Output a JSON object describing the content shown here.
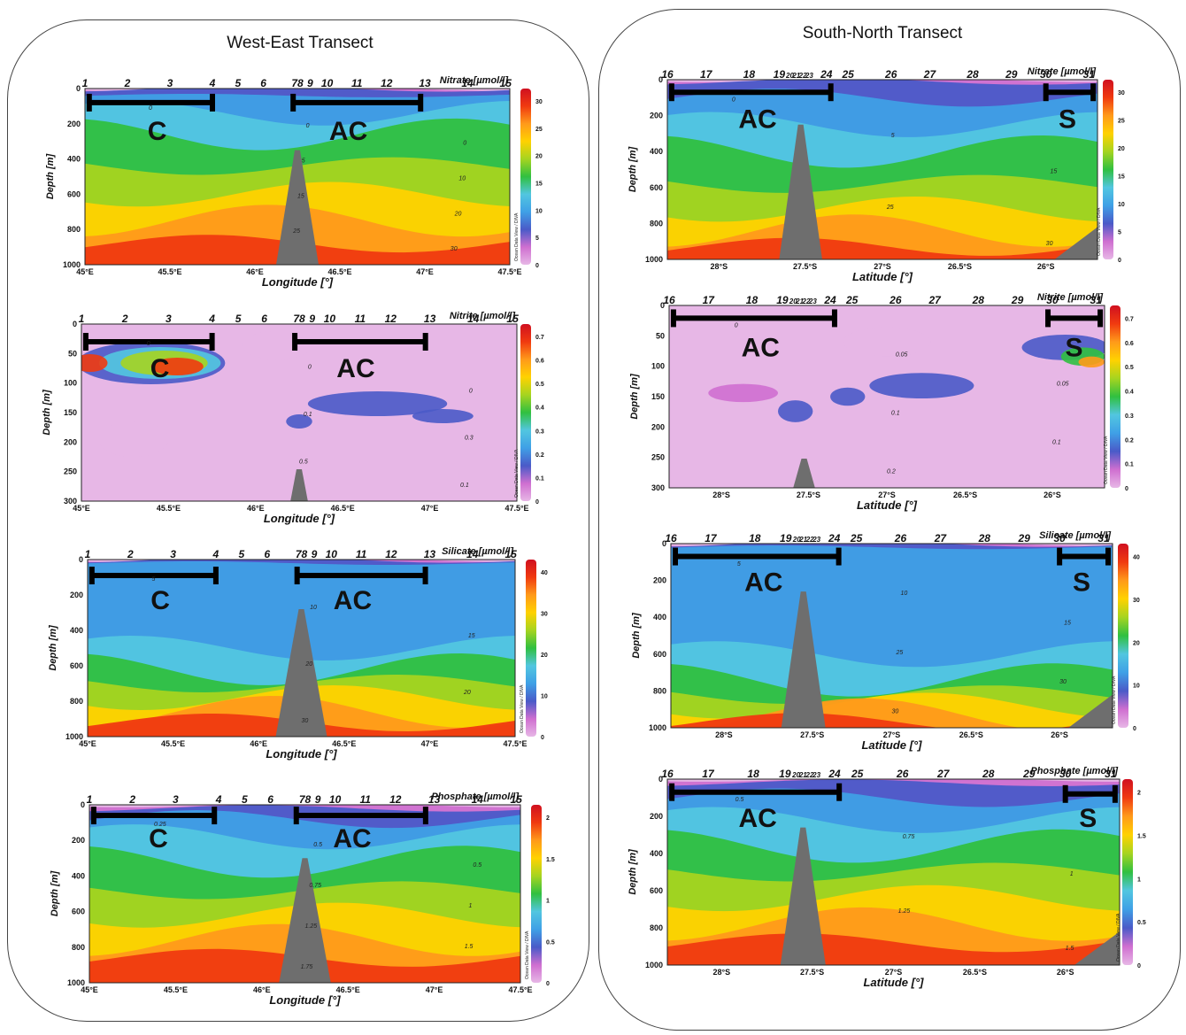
{
  "titles": {
    "west_east": "West-East Transect",
    "south_north": "South-North Transect"
  },
  "colorbar_credit": "Ocean Data View / DIVA",
  "colors": {
    "scale": [
      "#e7b7e6",
      "#cf6fd0",
      "#4a5ac8",
      "#3fa0e6",
      "#52c6e0",
      "#30c040",
      "#a6d420",
      "#ffd200",
      "#ff9a1a",
      "#f03a10",
      "#d01020"
    ],
    "seamount": "#6e6e6e",
    "bar": "#000000"
  },
  "chart_data": [
    {
      "id": "we-nitrate",
      "type": "heatmap",
      "transect": "West-East Transect",
      "variable": "Nitrate [µmol/l]",
      "xlabel": "Longitude [°]",
      "ylabel": "Depth [m]",
      "x_ticks": [
        "45°E",
        "45.5°E",
        "46°E",
        "46.5°E",
        "47°E",
        "47.5°E"
      ],
      "y_ticks": [
        "0",
        "200",
        "400",
        "600",
        "800",
        "1000"
      ],
      "ylim": [
        0,
        1000
      ],
      "colorbar_ticks": [
        "0",
        "5",
        "10",
        "15",
        "20",
        "25",
        "30"
      ],
      "stations": [
        "1",
        "2",
        "3",
        "4",
        "5",
        "6",
        "78",
        "9",
        "10",
        "11",
        "12",
        "13",
        "14",
        "15"
      ],
      "regions": [
        {
          "label": "C"
        },
        {
          "label": "AC"
        }
      ],
      "contour_labels": [
        "0",
        "0",
        "0",
        "5",
        "10",
        "15",
        "20",
        "25",
        "30"
      ]
    },
    {
      "id": "we-nitrite",
      "type": "heatmap",
      "transect": "West-East Transect",
      "variable": "Nitrite [µmol/l]",
      "xlabel": "Longitude [°]",
      "ylabel": "Depth [m]",
      "x_ticks": [
        "45°E",
        "45.5°E",
        "46°E",
        "46.5°E",
        "47°E",
        "47.5°E"
      ],
      "y_ticks": [
        "0",
        "50",
        "100",
        "150",
        "200",
        "250",
        "300"
      ],
      "ylim": [
        0,
        300
      ],
      "colorbar_ticks": [
        "0",
        "0.1",
        "0.2",
        "0.3",
        "0.4",
        "0.5",
        "0.6",
        "0.7"
      ],
      "stations": [
        "1",
        "2",
        "3",
        "4",
        "5",
        "6",
        "78",
        "9",
        "10",
        "11",
        "12",
        "13",
        "14",
        "15"
      ],
      "regions": [
        {
          "label": "C"
        },
        {
          "label": "AC"
        }
      ],
      "contour_labels": [
        "0",
        "0",
        "0",
        "0.1",
        "0.3",
        "0.5",
        "0.1"
      ]
    },
    {
      "id": "we-silicate",
      "type": "heatmap",
      "transect": "West-East Transect",
      "variable": "Silicate [µmol/l]",
      "xlabel": "Longitude [°]",
      "ylabel": "Depth [m]",
      "x_ticks": [
        "45°E",
        "45.5°E",
        "46°E",
        "46.5°E",
        "47°E",
        "47.5°E"
      ],
      "y_ticks": [
        "0",
        "200",
        "400",
        "600",
        "800",
        "1000"
      ],
      "ylim": [
        0,
        1000
      ],
      "colorbar_ticks": [
        "0",
        "10",
        "20",
        "30",
        "40"
      ],
      "stations": [
        "1",
        "2",
        "3",
        "4",
        "5",
        "6",
        "78",
        "9",
        "10",
        "11",
        "12",
        "13",
        "14",
        "15"
      ],
      "regions": [
        {
          "label": "C"
        },
        {
          "label": "AC"
        }
      ],
      "contour_labels": [
        "5",
        "10",
        "15",
        "20",
        "20",
        "30"
      ]
    },
    {
      "id": "we-phosphate",
      "type": "heatmap",
      "transect": "West-East Transect",
      "variable": "Phosphate [µmol/l]",
      "xlabel": "Longitude [°]",
      "ylabel": "Depth [m]",
      "x_ticks": [
        "45°E",
        "45.5°E",
        "46°E",
        "46.5°E",
        "47°E",
        "47.5°E"
      ],
      "y_ticks": [
        "0",
        "200",
        "400",
        "600",
        "800",
        "1000"
      ],
      "ylim": [
        0,
        1000
      ],
      "colorbar_ticks": [
        "0",
        "0.5",
        "1",
        "1.5",
        "2"
      ],
      "stations": [
        "1",
        "2",
        "3",
        "4",
        "5",
        "6",
        "78",
        "9",
        "10",
        "11",
        "12",
        "13",
        "14",
        "15"
      ],
      "regions": [
        {
          "label": "C"
        },
        {
          "label": "AC"
        }
      ],
      "contour_labels": [
        "0.25",
        "0.5",
        "0.5",
        "0.75",
        "1",
        "1.25",
        "1.5",
        "1.75"
      ]
    },
    {
      "id": "sn-nitrate",
      "type": "heatmap",
      "transect": "South-North Transect",
      "variable": "Nitrate [µmol/l]",
      "xlabel": "Latitude [°]",
      "ylabel": "Depth [m]",
      "x_ticks": [
        "28°S",
        "27.5°S",
        "27°S",
        "26.5°S",
        "26°S"
      ],
      "y_ticks": [
        "0",
        "200",
        "400",
        "600",
        "800",
        "1000"
      ],
      "ylim": [
        0,
        1000
      ],
      "colorbar_ticks": [
        "0",
        "5",
        "10",
        "15",
        "20",
        "25",
        "30"
      ],
      "stations": [
        "16",
        "17",
        "18",
        "19",
        "20",
        "21",
        "22",
        "23",
        "24",
        "25",
        "26",
        "27",
        "28",
        "29",
        "30",
        "31"
      ],
      "regions": [
        {
          "label": "AC"
        },
        {
          "label": "S"
        }
      ],
      "contour_labels": [
        "0",
        "5",
        "15",
        "25",
        "30"
      ]
    },
    {
      "id": "sn-nitrite",
      "type": "heatmap",
      "transect": "South-North Transect",
      "variable": "Nitrite [µmol/l]",
      "xlabel": "Latitude [°]",
      "ylabel": "Depth [m]",
      "x_ticks": [
        "28°S",
        "27.5°S",
        "27°S",
        "26.5°S",
        "26°S"
      ],
      "y_ticks": [
        "0",
        "50",
        "100",
        "150",
        "200",
        "250",
        "300"
      ],
      "ylim": [
        0,
        300
      ],
      "colorbar_ticks": [
        "0",
        "0.1",
        "0.2",
        "0.3",
        "0.4",
        "0.5",
        "0.6",
        "0.7"
      ],
      "stations": [
        "16",
        "17",
        "18",
        "19",
        "20",
        "21",
        "22",
        "23",
        "24",
        "25",
        "26",
        "27",
        "28",
        "29",
        "30",
        "31"
      ],
      "regions": [
        {
          "label": "AC"
        },
        {
          "label": "S"
        }
      ],
      "contour_labels": [
        "0",
        "0.05",
        "0.05",
        "0.1",
        "0.1",
        "0.2"
      ]
    },
    {
      "id": "sn-silicate",
      "type": "heatmap",
      "transect": "South-North Transect",
      "variable": "Silicate [µmol/l]",
      "xlabel": "Latitude [°]",
      "ylabel": "Depth [m]",
      "x_ticks": [
        "28°S",
        "27.5°S",
        "27°S",
        "26.5°S",
        "26°S"
      ],
      "y_ticks": [
        "0",
        "200",
        "400",
        "600",
        "800",
        "1000"
      ],
      "ylim": [
        0,
        1000
      ],
      "colorbar_ticks": [
        "0",
        "10",
        "20",
        "30",
        "40"
      ],
      "stations": [
        "16",
        "17",
        "18",
        "19",
        "20",
        "21",
        "22",
        "23",
        "24",
        "25",
        "26",
        "27",
        "28",
        "29",
        "30",
        "31"
      ],
      "regions": [
        {
          "label": "AC"
        },
        {
          "label": "S"
        }
      ],
      "contour_labels": [
        "5",
        "10",
        "15",
        "25",
        "30",
        "30"
      ]
    },
    {
      "id": "sn-phosphate",
      "type": "heatmap",
      "transect": "South-North Transect",
      "variable": "Phosphate [µmol/l]",
      "xlabel": "Latitude [°]",
      "ylabel": "Depth [m]",
      "x_ticks": [
        "28°S",
        "27.5°S",
        "27°S",
        "26.5°S",
        "26°S"
      ],
      "y_ticks": [
        "0",
        "200",
        "400",
        "600",
        "800",
        "1000"
      ],
      "ylim": [
        0,
        1000
      ],
      "colorbar_ticks": [
        "0",
        "0.5",
        "1",
        "1.5",
        "2"
      ],
      "stations": [
        "16",
        "17",
        "18",
        "19",
        "20",
        "21",
        "22",
        "23",
        "24",
        "25",
        "26",
        "27",
        "28",
        "29",
        "30",
        "31"
      ],
      "regions": [
        {
          "label": "AC"
        },
        {
          "label": "S"
        }
      ],
      "contour_labels": [
        "0.5",
        "0.75",
        "1",
        "1.25",
        "1.5"
      ]
    }
  ]
}
